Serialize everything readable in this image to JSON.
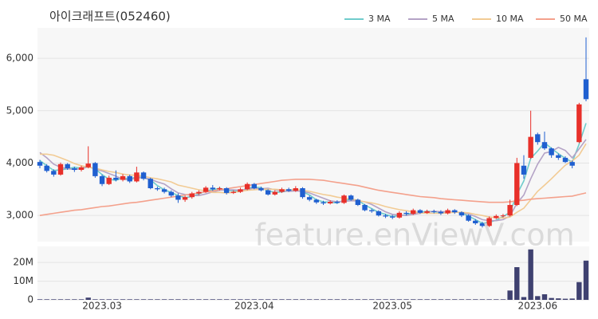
{
  "chart_data": [
    {
      "type": "candlestick",
      "title": "아이크래프트(052460)",
      "watermark": "feature.enViewV.com",
      "up_color": "#e8302a",
      "down_color": "#1f5fd0",
      "grid": true,
      "legend": "top-right",
      "ylim": [
        2500,
        6580
      ],
      "yticks": [
        {
          "value": 3000,
          "label": "3,000"
        },
        {
          "value": 4000,
          "label": "4,000"
        },
        {
          "value": 5000,
          "label": "5,000"
        },
        {
          "value": 6000,
          "label": "6,000"
        }
      ],
      "open": [
        4020,
        3950,
        3850,
        3780,
        3980,
        3900,
        3870,
        3920,
        4000,
        3750,
        3600,
        3720,
        3680,
        3750,
        3650,
        3820,
        3700,
        3520,
        3500,
        3450,
        3380,
        3300,
        3350,
        3420,
        3450,
        3530,
        3500,
        3520,
        3430,
        3450,
        3500,
        3600,
        3520,
        3480,
        3400,
        3450,
        3500,
        3470,
        3520,
        3350,
        3300,
        3250,
        3230,
        3260,
        3240,
        3380,
        3300,
        3200,
        3100,
        3080,
        3000,
        2980,
        2960,
        3050,
        3030,
        3100,
        3050,
        3080,
        3070,
        3040,
        3100,
        3060,
        3000,
        2900,
        2850,
        2800,
        2950,
        2990,
        3000,
        3200,
        3950,
        4100,
        4550,
        4400,
        4280,
        4150,
        4100,
        4020,
        4400,
        5600
      ],
      "high": [
        4060,
        3980,
        3880,
        4010,
        4000,
        3930,
        3950,
        4320,
        4020,
        3780,
        3760,
        3860,
        3790,
        3780,
        3930,
        3840,
        3720,
        3550,
        3530,
        3480,
        3420,
        3380,
        3450,
        3480,
        3560,
        3580,
        3550,
        3540,
        3480,
        3530,
        3630,
        3620,
        3550,
        3500,
        3480,
        3530,
        3530,
        3560,
        3540,
        3380,
        3320,
        3280,
        3290,
        3290,
        3400,
        3400,
        3320,
        3220,
        3130,
        3100,
        3030,
        3010,
        3080,
        3080,
        3130,
        3120,
        3110,
        3110,
        3100,
        3130,
        3120,
        3080,
        3020,
        2930,
        2880,
        2980,
        3020,
        3030,
        3300,
        4100,
        4150,
        5000,
        4580,
        4600,
        4300,
        4180,
        4130,
        4050,
        5150,
        6400
      ],
      "low": [
        3900,
        3820,
        3740,
        3760,
        3870,
        3830,
        3840,
        3900,
        3720,
        3560,
        3580,
        3650,
        3650,
        3620,
        3630,
        3670,
        3500,
        3470,
        3420,
        3350,
        3240,
        3260,
        3320,
        3390,
        3430,
        3470,
        3480,
        3400,
        3410,
        3430,
        3480,
        3500,
        3460,
        3380,
        3380,
        3430,
        3450,
        3450,
        3320,
        3270,
        3220,
        3200,
        3210,
        3220,
        3220,
        3280,
        3180,
        3080,
        3050,
        2980,
        2950,
        2930,
        2940,
        3000,
        3010,
        3030,
        3030,
        3040,
        3010,
        3020,
        3030,
        2970,
        2880,
        2820,
        2770,
        2780,
        2930,
        2960,
        2980,
        3180,
        3700,
        4080,
        4350,
        4250,
        4100,
        4060,
        4000,
        3900,
        4380,
        5180
      ],
      "close": [
        3950,
        3850,
        3780,
        3980,
        3900,
        3870,
        3920,
        3990,
        3750,
        3600,
        3720,
        3680,
        3750,
        3650,
        3820,
        3700,
        3520,
        3500,
        3450,
        3380,
        3300,
        3350,
        3420,
        3450,
        3530,
        3500,
        3520,
        3430,
        3450,
        3500,
        3600,
        3520,
        3480,
        3400,
        3450,
        3500,
        3470,
        3520,
        3350,
        3300,
        3250,
        3230,
        3260,
        3240,
        3380,
        3300,
        3200,
        3100,
        3080,
        3000,
        2980,
        2960,
        3050,
        3030,
        3100,
        3050,
        3080,
        3070,
        3040,
        3100,
        3060,
        3000,
        2900,
        2850,
        2800,
        2950,
        2990,
        3000,
        3200,
        4000,
        3780,
        4500,
        4400,
        4280,
        4150,
        4100,
        4020,
        3950,
        5120,
        5220
      ],
      "series": [
        {
          "name": "3 MA",
          "color": "#6fcccc",
          "values": [
            4050,
            3950,
            3860,
            3870,
            3890,
            3920,
            3900,
            3930,
            3890,
            3780,
            3690,
            3670,
            3720,
            3690,
            3740,
            3720,
            3680,
            3570,
            3490,
            3440,
            3380,
            3340,
            3360,
            3410,
            3470,
            3490,
            3520,
            3480,
            3470,
            3460,
            3520,
            3540,
            3530,
            3470,
            3440,
            3450,
            3470,
            3500,
            3450,
            3390,
            3300,
            3260,
            3250,
            3240,
            3290,
            3310,
            3290,
            3200,
            3130,
            3060,
            3020,
            2980,
            3000,
            3010,
            3060,
            3060,
            3080,
            3070,
            3060,
            3070,
            3070,
            3050,
            2990,
            2920,
            2850,
            2870,
            2910,
            2980,
            3060,
            3400,
            3660,
            4090,
            4230,
            4390,
            4280,
            4180,
            4090,
            4020,
            4360,
            4760
          ]
        },
        {
          "name": "5 MA",
          "color": "#b4a3c6",
          "values": [
            4200,
            4100,
            3980,
            3920,
            3890,
            3880,
            3890,
            3930,
            3890,
            3850,
            3800,
            3750,
            3690,
            3680,
            3720,
            3720,
            3690,
            3640,
            3600,
            3510,
            3430,
            3400,
            3380,
            3380,
            3410,
            3450,
            3480,
            3490,
            3490,
            3480,
            3500,
            3520,
            3510,
            3520,
            3490,
            3470,
            3460,
            3470,
            3460,
            3430,
            3380,
            3330,
            3280,
            3260,
            3270,
            3280,
            3280,
            3260,
            3210,
            3140,
            3070,
            3020,
            3010,
            3000,
            3020,
            3040,
            3060,
            3080,
            3070,
            3070,
            3070,
            3050,
            3030,
            2980,
            2920,
            2900,
            2900,
            2920,
            2990,
            3230,
            3390,
            3700,
            3980,
            4190,
            4220,
            4300,
            4240,
            4100,
            4270,
            4450
          ]
        },
        {
          "name": "10 MA",
          "color": "#f2cb94",
          "values": [
            4170,
            4170,
            4150,
            4100,
            4050,
            3990,
            3950,
            3920,
            3900,
            3870,
            3840,
            3820,
            3790,
            3770,
            3770,
            3750,
            3720,
            3700,
            3670,
            3640,
            3580,
            3550,
            3520,
            3490,
            3470,
            3440,
            3440,
            3430,
            3440,
            3460,
            3480,
            3490,
            3500,
            3500,
            3500,
            3490,
            3490,
            3490,
            3480,
            3460,
            3430,
            3400,
            3380,
            3350,
            3330,
            3310,
            3290,
            3260,
            3240,
            3210,
            3170,
            3140,
            3110,
            3090,
            3070,
            3050,
            3040,
            3040,
            3040,
            3050,
            3060,
            3060,
            3050,
            3020,
            3000,
            2970,
            2960,
            2950,
            2970,
            3060,
            3140,
            3300,
            3460,
            3580,
            3700,
            3830,
            3960,
            4040,
            4150,
            4370
          ]
        },
        {
          "name": "50 MA",
          "color": "#f4a18c",
          "values": [
            3000,
            3020,
            3040,
            3060,
            3080,
            3100,
            3110,
            3130,
            3150,
            3170,
            3180,
            3200,
            3220,
            3240,
            3250,
            3270,
            3290,
            3310,
            3330,
            3350,
            3370,
            3390,
            3410,
            3430,
            3450,
            3470,
            3490,
            3510,
            3530,
            3550,
            3570,
            3590,
            3610,
            3630,
            3650,
            3670,
            3680,
            3690,
            3690,
            3690,
            3680,
            3670,
            3650,
            3630,
            3610,
            3590,
            3570,
            3540,
            3510,
            3480,
            3460,
            3440,
            3420,
            3400,
            3380,
            3360,
            3350,
            3340,
            3320,
            3310,
            3300,
            3290,
            3280,
            3270,
            3260,
            3250,
            3250,
            3250,
            3260,
            3280,
            3290,
            3310,
            3320,
            3330,
            3340,
            3350,
            3360,
            3370,
            3400,
            3430
          ]
        }
      ]
    },
    {
      "type": "bar",
      "color": "#3f4170",
      "ylim": [
        0,
        28600000
      ],
      "yticks": [
        0,
        {
          "value": 10000000,
          "label": "10M"
        },
        {
          "value": 20000000,
          "label": "20M"
        }
      ],
      "categories": [
        null,
        null,
        null,
        null,
        null,
        null,
        null,
        null,
        null,
        "2023.03",
        null,
        null,
        null,
        null,
        null,
        null,
        null,
        null,
        null,
        null,
        null,
        null,
        null,
        null,
        null,
        null,
        null,
        null,
        null,
        null,
        null,
        "2023.04",
        null,
        null,
        null,
        null,
        null,
        null,
        null,
        null,
        null,
        null,
        null,
        null,
        null,
        null,
        null,
        null,
        null,
        null,
        null,
        "2023.05",
        null,
        null,
        null,
        null,
        null,
        null,
        null,
        null,
        null,
        null,
        null,
        null,
        null,
        null,
        null,
        null,
        null,
        null,
        null,
        null,
        "2023.06",
        null,
        null,
        null,
        null,
        null,
        null,
        null
      ],
      "values": [
        300000,
        300000,
        300000,
        300000,
        300000,
        300000,
        300000,
        1200000,
        300000,
        300000,
        300000,
        300000,
        300000,
        300000,
        300000,
        300000,
        300000,
        300000,
        300000,
        300000,
        300000,
        300000,
        300000,
        300000,
        300000,
        300000,
        300000,
        300000,
        300000,
        300000,
        300000,
        300000,
        300000,
        300000,
        300000,
        300000,
        300000,
        300000,
        300000,
        300000,
        300000,
        300000,
        300000,
        300000,
        300000,
        300000,
        300000,
        300000,
        300000,
        300000,
        300000,
        300000,
        300000,
        300000,
        300000,
        300000,
        300000,
        300000,
        300000,
        300000,
        300000,
        300000,
        300000,
        300000,
        300000,
        300000,
        300000,
        300000,
        5000000,
        17500000,
        1500000,
        27000000,
        2000000,
        3000000,
        1000000,
        800000,
        600000,
        700000,
        9500000,
        21000000
      ]
    }
  ]
}
